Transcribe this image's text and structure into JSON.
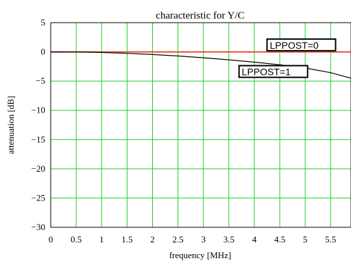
{
  "chart_data": {
    "type": "line",
    "title": "characteristic for Y/C",
    "xlabel": "frequency [MHz]",
    "ylabel": "attenuation [dB]",
    "xlim": [
      0,
      5.9
    ],
    "ylim": [
      -30,
      5
    ],
    "x_ticks": [
      0,
      0.5,
      1,
      1.5,
      2,
      2.5,
      3,
      3.5,
      4,
      4.5,
      5,
      5.5
    ],
    "x_tick_labels": [
      "0",
      "0.5",
      "1",
      "1.5",
      "2",
      "2.5",
      "3",
      "3.5",
      "4",
      "4.5",
      "5",
      "5.5"
    ],
    "y_ticks": [
      5,
      0,
      -5,
      -10,
      -15,
      -20,
      -25,
      -30
    ],
    "y_tick_labels": [
      "5",
      "0",
      "−5",
      "−10",
      "−15",
      "−20",
      "−25",
      "−30"
    ],
    "grid": true,
    "grid_color": "#22cc22",
    "series": [
      {
        "name": "LPPOST=0",
        "color": "#e05030",
        "x": [
          0,
          0.5,
          1,
          1.5,
          2,
          2.5,
          3,
          3.5,
          4,
          4.5,
          5,
          5.5,
          5.9
        ],
        "y": [
          0,
          0,
          0,
          0,
          0,
          0,
          0,
          0,
          0,
          0,
          0,
          0,
          0
        ]
      },
      {
        "name": "LPPOST=1",
        "color": "#000000",
        "x": [
          0,
          0.5,
          1,
          1.5,
          2,
          2.5,
          3,
          3.5,
          4,
          4.5,
          5,
          5.5,
          5.9
        ],
        "y": [
          0,
          -0.02,
          -0.1,
          -0.25,
          -0.45,
          -0.7,
          -1.0,
          -1.35,
          -1.75,
          -2.2,
          -2.75,
          -3.55,
          -4.5
        ]
      }
    ],
    "annotations": [
      {
        "text": "LPPOST=0",
        "x": 4.25,
        "y": 0.2
      },
      {
        "text": "LPPOST=1",
        "x": 3.7,
        "y": -4.35
      }
    ]
  }
}
